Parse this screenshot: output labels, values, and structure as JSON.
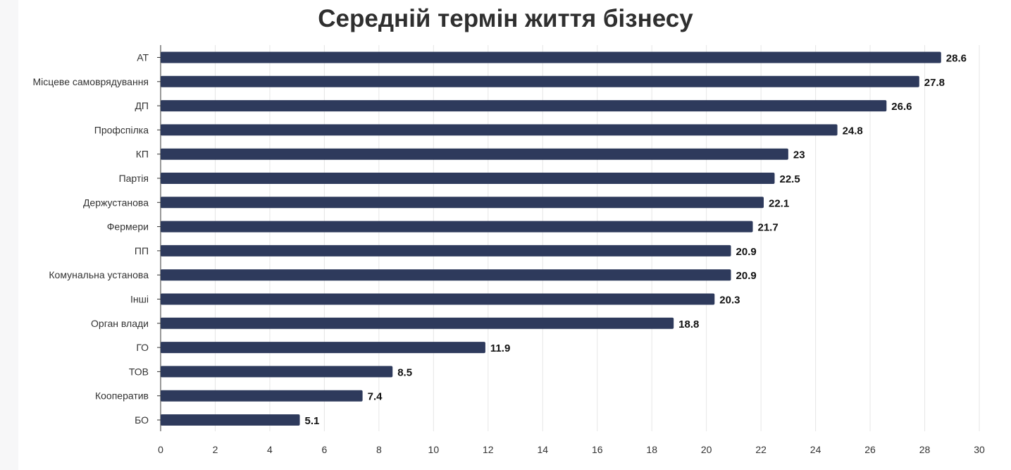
{
  "chart_data": {
    "type": "bar",
    "orientation": "horizontal",
    "title": "Середній термін життя бізнесу",
    "categories": [
      "АТ",
      "Місцеве самоврядування",
      "ДП",
      "Профспілка",
      "КП",
      "Партія",
      "Держустанова",
      "Фермери",
      "ПП",
      "Комунальна установа",
      "Інші",
      "Орган влади",
      "ГО",
      "ТОВ",
      "Кооператив",
      "БО"
    ],
    "values": [
      28.6,
      27.8,
      26.6,
      24.8,
      23,
      22.5,
      22.1,
      21.7,
      20.9,
      20.9,
      20.3,
      18.8,
      11.9,
      8.5,
      7.4,
      5.1
    ],
    "value_labels": [
      "28.6",
      "27.8",
      "26.6",
      "24.8",
      "23",
      "22.5",
      "22.1",
      "21.7",
      "20.9",
      "20.9",
      "20.3",
      "18.8",
      "11.9",
      "8.5",
      "7.4",
      "5.1"
    ],
    "xlim": [
      0,
      30
    ],
    "xticks": [
      "0",
      "2",
      "4",
      "6",
      "8",
      "10",
      "12",
      "14",
      "16",
      "18",
      "20",
      "22",
      "24",
      "26",
      "28",
      "30"
    ],
    "grid": "vertical",
    "legend": "none",
    "bar_color": "#2e3a5c"
  }
}
